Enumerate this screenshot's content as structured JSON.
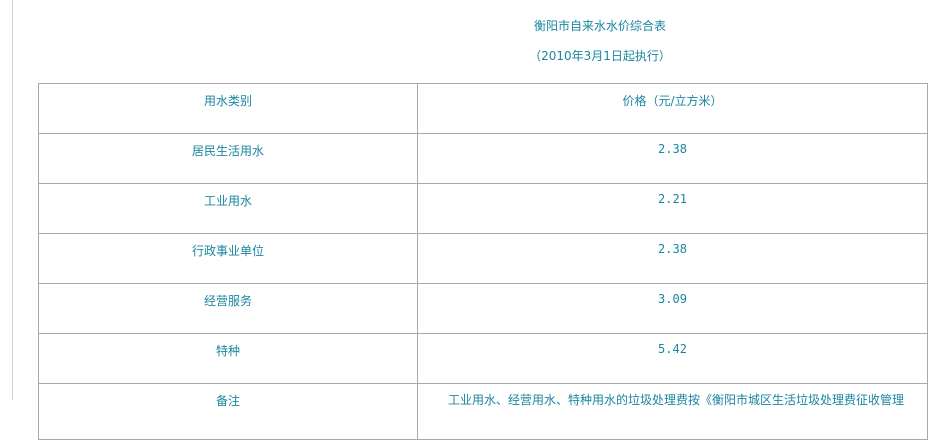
{
  "title": "衡阳市自来水水价综合表",
  "subtitle": "（2010年3月1日起执行）",
  "table": {
    "headers": [
      "用水类别",
      "价格（元/立方米）"
    ],
    "rows": [
      {
        "category": "居民生活用水",
        "price": "2.38"
      },
      {
        "category": "工业用水",
        "price": "2.21"
      },
      {
        "category": "行政事业单位",
        "price": "2.38"
      },
      {
        "category": "经营服务",
        "price": "3.09"
      },
      {
        "category": "特种",
        "price": "5.42"
      }
    ],
    "note_label": "备注",
    "note_text": "工业用水、经营用水、特种用水的垃圾处理费按《衡阳市城区生活垃圾处理费征收管理"
  },
  "colors": {
    "text": "#1b86a0",
    "border": "#a8a8a8"
  }
}
